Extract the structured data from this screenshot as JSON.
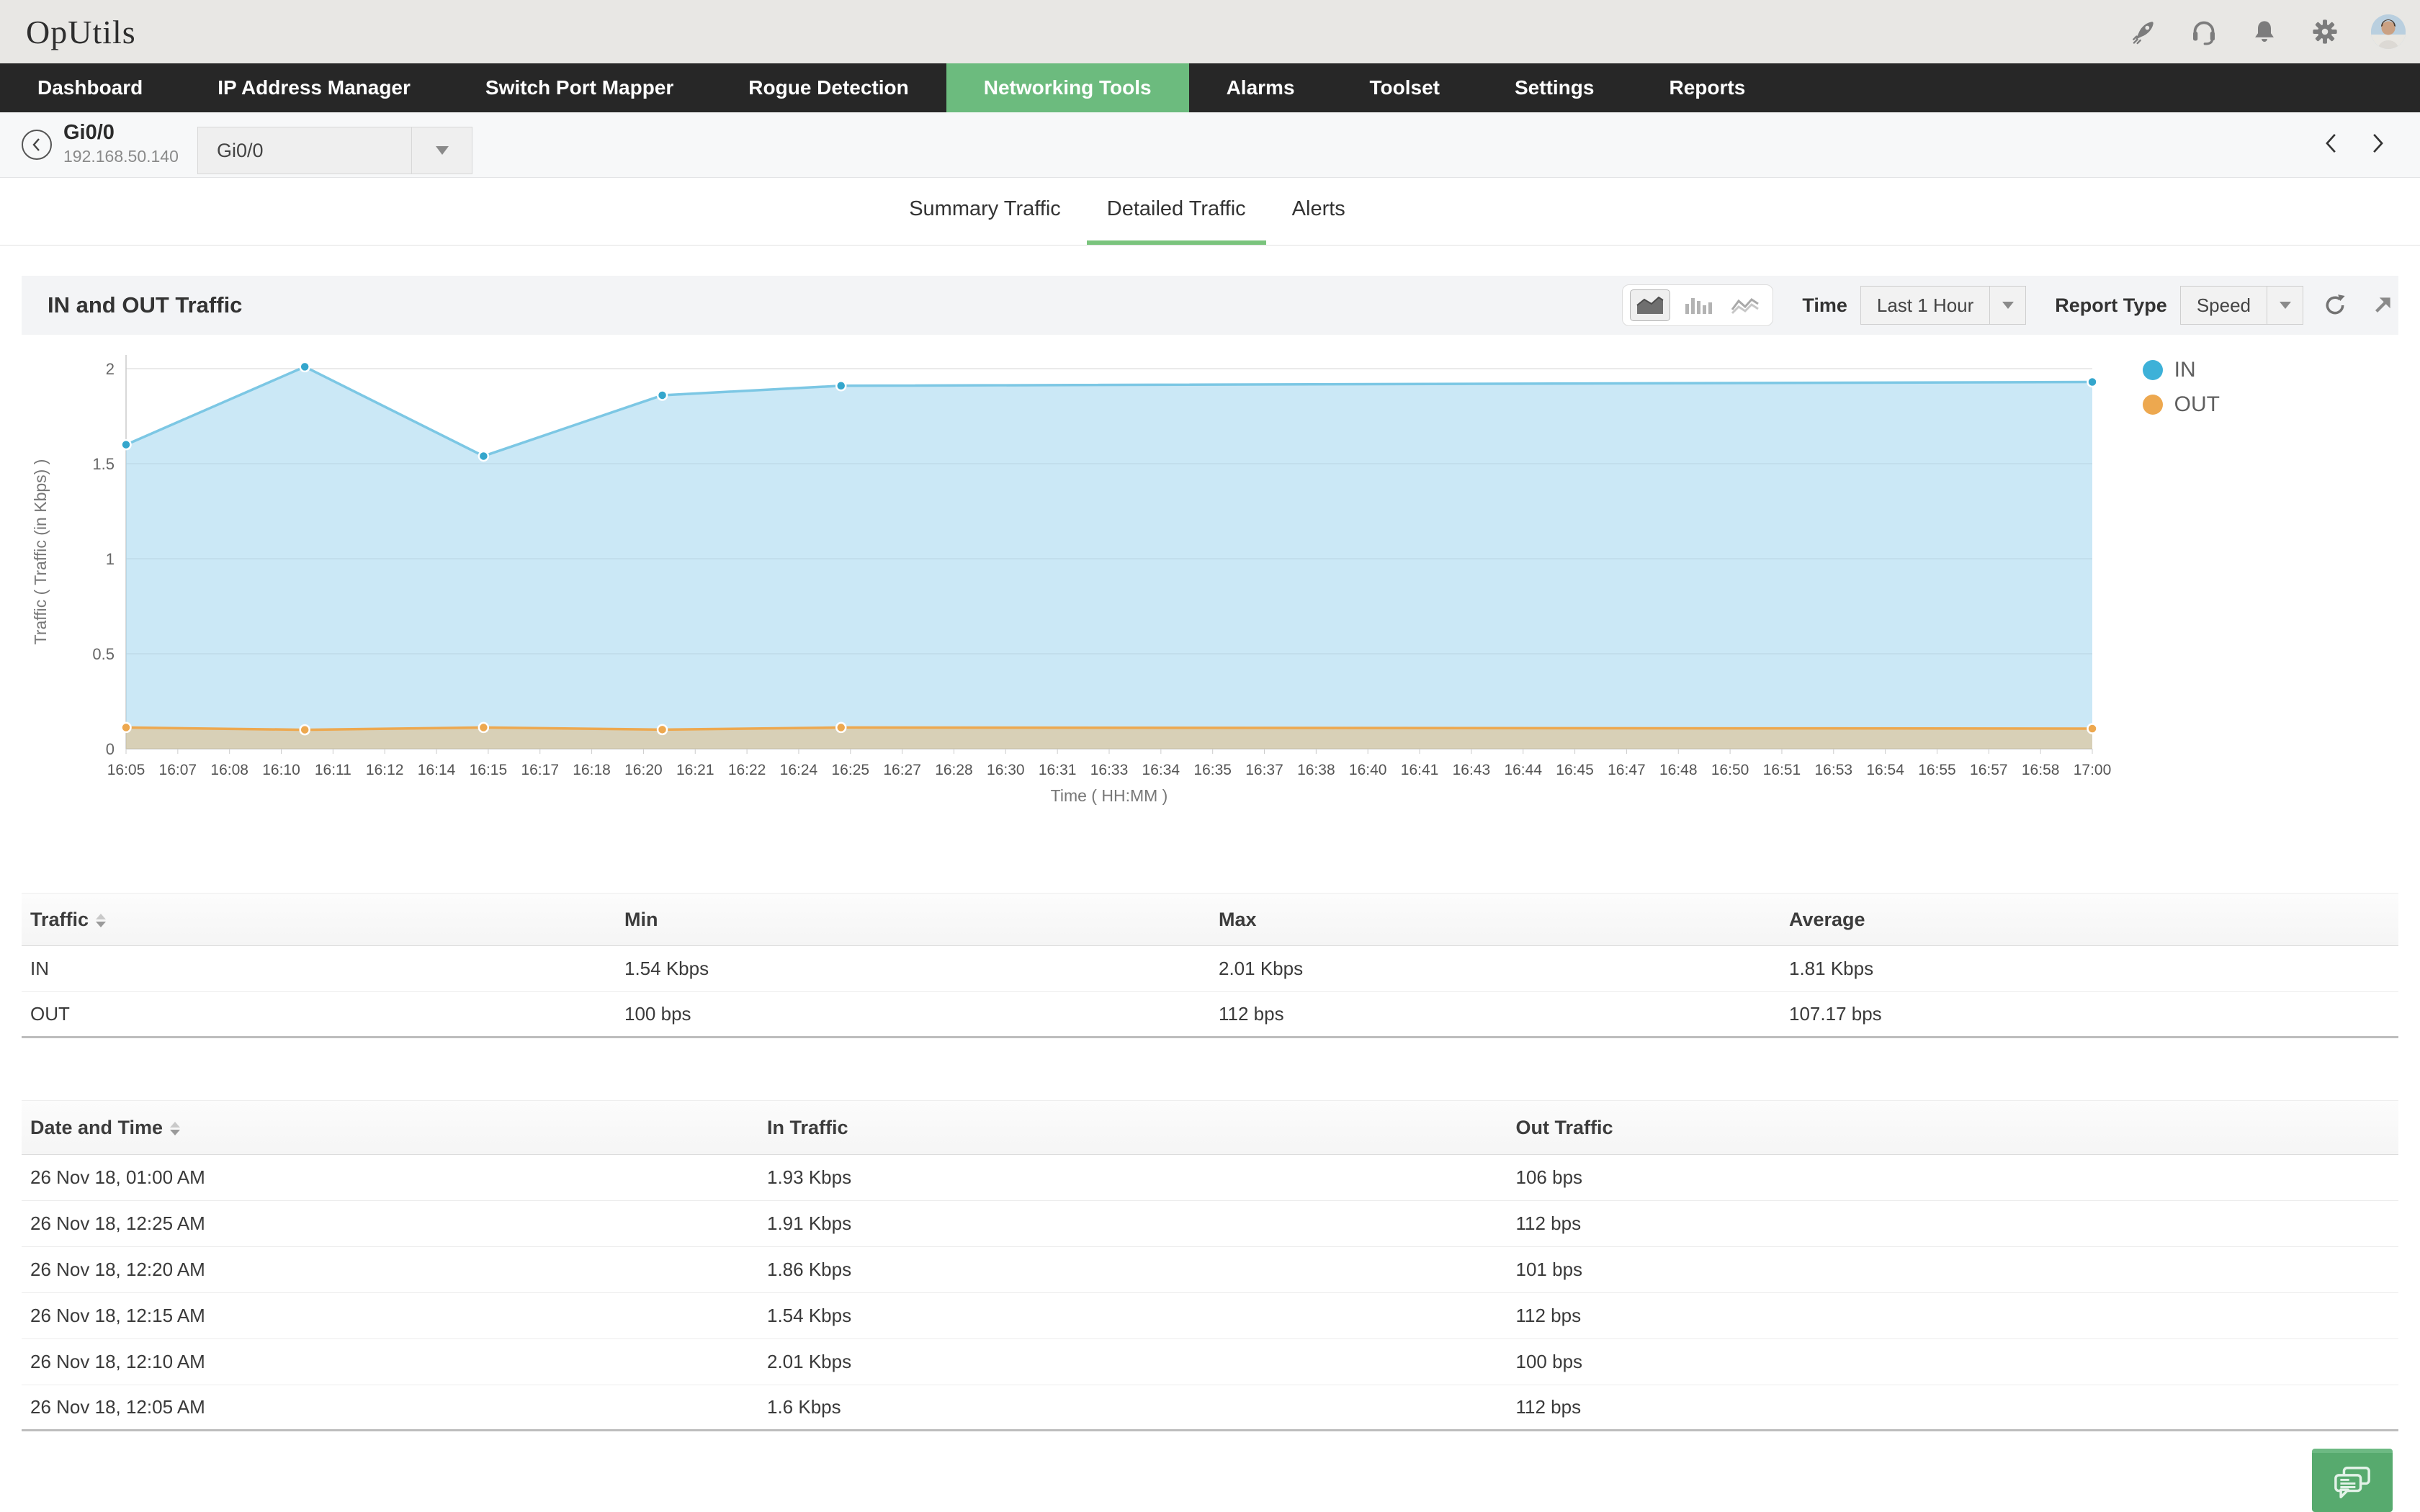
{
  "app": {
    "name": "OpUtils"
  },
  "topbar": {
    "icons": [
      "rocket",
      "headset-support",
      "notification-bell",
      "settings-gear",
      "user-avatar"
    ]
  },
  "nav": {
    "items": [
      {
        "label": "Dashboard",
        "active": false
      },
      {
        "label": "IP Address Manager",
        "active": false
      },
      {
        "label": "Switch Port Mapper",
        "active": false
      },
      {
        "label": "Rogue Detection",
        "active": false
      },
      {
        "label": "Networking Tools",
        "active": true
      },
      {
        "label": "Alarms",
        "active": false
      },
      {
        "label": "Toolset",
        "active": false
      },
      {
        "label": "Settings",
        "active": false
      },
      {
        "label": "Reports",
        "active": false
      }
    ],
    "active_color": "#6cbb7e"
  },
  "breadcrumb": {
    "title": "Gi0/0",
    "subtitle": "192.168.50.140",
    "interface_select": {
      "value": "Gi0/0"
    }
  },
  "tabs": {
    "items": [
      {
        "label": "Summary Traffic",
        "active": false
      },
      {
        "label": "Detailed Traffic",
        "active": true
      },
      {
        "label": "Alerts",
        "active": false
      }
    ]
  },
  "panel": {
    "title": "IN and OUT Traffic",
    "chart_type_icons": [
      "area-chart",
      "bar-chart",
      "line-chart"
    ],
    "time_label": "Time",
    "time_value": "Last 1 Hour",
    "report_type_label": "Report Type",
    "report_type_value": "Speed",
    "action_icons": [
      "refresh",
      "expand"
    ]
  },
  "chart_data": {
    "type": "area",
    "title": "IN and OUT Traffic",
    "xlabel": "Time ( HH:MM )",
    "ylabel": "Traffic ( Traffic (in Kbps) )",
    "ylim": [
      0,
      2.05
    ],
    "yticks": [
      0,
      0.5,
      1,
      1.5,
      2
    ],
    "grid": "horizontal",
    "legend_position": "right",
    "x_tick_labels": [
      "16:05",
      "16:07",
      "16:08",
      "16:10",
      "16:11",
      "16:12",
      "16:14",
      "16:15",
      "16:17",
      "16:18",
      "16:20",
      "16:21",
      "16:22",
      "16:24",
      "16:25",
      "16:27",
      "16:28",
      "16:30",
      "16:31",
      "16:33",
      "16:34",
      "16:35",
      "16:37",
      "16:38",
      "16:40",
      "16:41",
      "16:43",
      "16:44",
      "16:45",
      "16:47",
      "16:48",
      "16:50",
      "16:51",
      "16:53",
      "16:54",
      "16:55",
      "16:57",
      "16:58",
      "17:00"
    ],
    "x": [
      "16:05",
      "16:10",
      "16:15",
      "16:20",
      "16:25",
      "17:00"
    ],
    "x_minutes": [
      0,
      5,
      10,
      15,
      20,
      55
    ],
    "axis_minutes_span": 55,
    "series": [
      {
        "name": "IN",
        "color": "#7cc7e4",
        "fill": "rgba(160,214,238,0.55)",
        "point_color": "#34a6cc",
        "values_kbps": [
          1.6,
          2.01,
          1.54,
          1.86,
          1.91,
          1.93
        ]
      },
      {
        "name": "OUT",
        "color": "#eda84f",
        "fill": "rgba(232,179,106,0.45)",
        "point_color": "#eda84f",
        "values_kbps": [
          0.112,
          0.1,
          0.112,
          0.101,
          0.112,
          0.106
        ]
      }
    ]
  },
  "summary_table": {
    "columns": [
      "Traffic",
      "Min",
      "Max",
      "Average"
    ],
    "rows": [
      [
        "IN",
        "1.54 Kbps",
        "2.01 Kbps",
        "1.81 Kbps"
      ],
      [
        "OUT",
        "100 bps",
        "112 bps",
        "107.17 bps"
      ]
    ]
  },
  "detail_table": {
    "columns": [
      "Date and Time",
      "In Traffic",
      "Out Traffic"
    ],
    "rows": [
      [
        "26 Nov 18, 01:00 AM",
        "1.93 Kbps",
        "106 bps"
      ],
      [
        "26 Nov 18, 12:25 AM",
        "1.91 Kbps",
        "112 bps"
      ],
      [
        "26 Nov 18, 12:20 AM",
        "1.86 Kbps",
        "101 bps"
      ],
      [
        "26 Nov 18, 12:15 AM",
        "1.54 Kbps",
        "112 bps"
      ],
      [
        "26 Nov 18, 12:10 AM",
        "2.01 Kbps",
        "100 bps"
      ],
      [
        "26 Nov 18, 12:05 AM",
        "1.6 Kbps",
        "112 bps"
      ]
    ]
  }
}
